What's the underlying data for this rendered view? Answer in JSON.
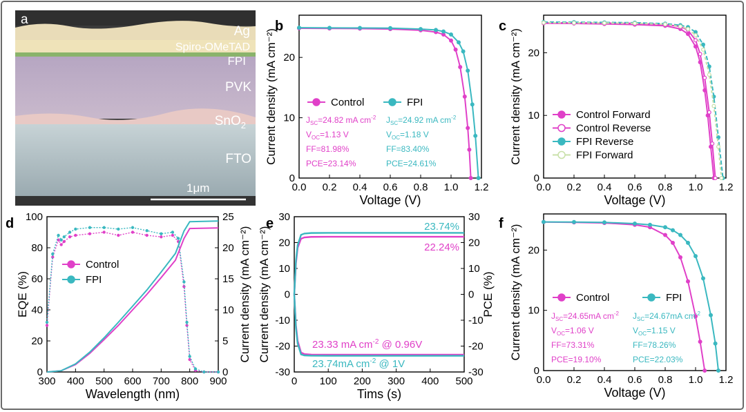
{
  "colors": {
    "control": "#e040c8",
    "fpi": "#3ab8c0",
    "frame": "#555555"
  },
  "panel_a": {
    "label": "a",
    "layers": [
      "Ag",
      "Spiro-OMeTAD",
      "FPI",
      "PVK",
      "SnO",
      "FTO"
    ],
    "sno2_sub": "2",
    "scalebar": "1μm"
  },
  "chart_data": [
    {
      "panel": "b",
      "type": "line",
      "xlabel": "Voltage (V)",
      "ylabel": "Current density (mA cm⁻²)",
      "xlim": [
        0,
        1.2
      ],
      "ylim": [
        0,
        27
      ],
      "xticks": [
        "0.0",
        "0.2",
        "0.4",
        "0.6",
        "0.8",
        "1.0",
        "1.2"
      ],
      "yticks": [
        "0",
        "10",
        "20"
      ],
      "series": [
        {
          "name": "Control",
          "x": [
            0,
            0.2,
            0.4,
            0.6,
            0.8,
            0.9,
            0.95,
            1.0,
            1.03,
            1.06,
            1.09,
            1.11,
            1.12,
            1.13
          ],
          "y": [
            24.82,
            24.8,
            24.77,
            24.7,
            24.5,
            24.2,
            23.8,
            22.8,
            21.3,
            18.4,
            13.5,
            8.3,
            4.7,
            0
          ]
        },
        {
          "name": "FPI",
          "x": [
            0,
            0.2,
            0.4,
            0.6,
            0.8,
            0.9,
            0.95,
            1.0,
            1.05,
            1.08,
            1.11,
            1.14,
            1.16,
            1.18
          ],
          "y": [
            24.92,
            24.9,
            24.88,
            24.85,
            24.7,
            24.55,
            24.3,
            23.8,
            22.5,
            21.0,
            17.8,
            12.2,
            7.0,
            0
          ]
        }
      ],
      "legend": [
        "Control",
        "FPI"
      ],
      "annotations": {
        "control": [
          "J=24.82 mA cm",
          "V=1.13 V",
          "FF=81.98%",
          "PCE=23.14%"
        ],
        "fpi": [
          "J=24.92 mA cm",
          "V=1.18 V",
          "FF=83.40%",
          "PCE=24.61%"
        ]
      }
    },
    {
      "panel": "c",
      "type": "line",
      "xlabel": "Voltage (V)",
      "ylabel": "Current density (mA cm⁻²)",
      "xlim": [
        0,
        1.2
      ],
      "ylim": [
        0,
        26
      ],
      "xticks": [
        "0.0",
        "0.2",
        "0.4",
        "0.6",
        "0.8",
        "1.0",
        "1.2"
      ],
      "yticks": [
        "0",
        "10",
        "20"
      ],
      "series": [
        {
          "name": "Control Forward",
          "x": [
            0,
            0.2,
            0.4,
            0.6,
            0.8,
            0.9,
            0.95,
            1.0,
            1.03,
            1.06,
            1.08,
            1.1,
            1.12
          ],
          "y": [
            24.7,
            24.68,
            24.6,
            24.5,
            24.3,
            23.8,
            23.0,
            21.0,
            18.5,
            14.0,
            10.0,
            5.0,
            0
          ]
        },
        {
          "name": "Control Reverse",
          "x": [
            0,
            0.2,
            0.4,
            0.6,
            0.8,
            0.9,
            0.95,
            1.0,
            1.03,
            1.06,
            1.09,
            1.11,
            1.13
          ],
          "y": [
            24.8,
            24.78,
            24.75,
            24.7,
            24.5,
            24.2,
            23.6,
            22.0,
            19.8,
            16.0,
            10.5,
            5.5,
            0
          ]
        },
        {
          "name": "FPI Reverse",
          "x": [
            0,
            0.2,
            0.4,
            0.6,
            0.8,
            0.9,
            0.95,
            1.0,
            1.05,
            1.09,
            1.12,
            1.15,
            1.18
          ],
          "y": [
            24.9,
            24.88,
            24.85,
            24.8,
            24.65,
            24.4,
            24.1,
            23.3,
            21.3,
            17.8,
            13.0,
            6.5,
            0
          ]
        },
        {
          "name": "FPI Forward",
          "x": [
            0,
            0.2,
            0.4,
            0.6,
            0.8,
            0.9,
            0.95,
            1.0,
            1.05,
            1.09,
            1.12,
            1.15,
            1.17
          ],
          "y": [
            24.8,
            24.78,
            24.75,
            24.7,
            24.55,
            24.2,
            23.8,
            22.8,
            20.5,
            16.5,
            11.5,
            5.0,
            0
          ]
        }
      ],
      "legend": [
        "Control Forward",
        "Control Reverse",
        "FPI Reverse",
        "FPI Forward"
      ]
    },
    {
      "panel": "d",
      "type": "line",
      "xlabel": "Wavelength (nm)",
      "ylabel": "EQE (%)",
      "y2label": "Current density (mA cm⁻²)",
      "xlim": [
        300,
        900
      ],
      "ylim": [
        0,
        100
      ],
      "y2lim": [
        0,
        25
      ],
      "xticks": [
        "300",
        "400",
        "500",
        "600",
        "700",
        "800",
        "900"
      ],
      "yticks": [
        "0",
        "20",
        "40",
        "60",
        "80",
        "100"
      ],
      "y2ticks": [
        "0",
        "5",
        "10",
        "15",
        "20",
        "25"
      ],
      "series": [
        {
          "name": "Control",
          "x": [
            300,
            320,
            340,
            350,
            360,
            380,
            400,
            450,
            500,
            550,
            600,
            650,
            700,
            740,
            760,
            780,
            790,
            800,
            820,
            850,
            900
          ],
          "y": [
            30,
            74,
            85,
            82,
            84,
            87,
            88,
            89,
            90,
            88,
            90,
            88,
            87,
            88,
            84,
            55,
            30,
            8,
            1,
            0,
            0
          ]
        },
        {
          "name": "FPI",
          "x": [
            300,
            320,
            340,
            350,
            360,
            380,
            400,
            450,
            500,
            550,
            600,
            650,
            700,
            740,
            760,
            780,
            790,
            800,
            820,
            850,
            900
          ],
          "y": [
            32,
            76,
            88,
            85,
            87,
            90,
            92,
            93,
            93,
            92,
            93,
            91,
            89,
            90,
            86,
            58,
            32,
            10,
            2,
            0,
            0
          ]
        }
      ],
      "jsc_series": [
        {
          "name": "Control",
          "x": [
            300,
            350,
            400,
            450,
            500,
            550,
            600,
            650,
            700,
            750,
            780,
            800,
            900
          ],
          "y": [
            0,
            0.2,
            1.2,
            3.0,
            5.2,
            7.5,
            10.0,
            12.5,
            15.2,
            18.0,
            21.5,
            23.1,
            23.2
          ]
        },
        {
          "name": "FPI",
          "x": [
            300,
            350,
            400,
            450,
            500,
            550,
            600,
            650,
            700,
            750,
            780,
            800,
            900
          ],
          "y": [
            0,
            0.2,
            1.3,
            3.2,
            5.5,
            8.0,
            10.6,
            13.2,
            16.1,
            19.1,
            22.7,
            24.2,
            24.3
          ]
        }
      ],
      "legend": [
        "Control",
        "FPI"
      ]
    },
    {
      "panel": "e",
      "type": "line",
      "xlabel": "Tims (s)",
      "ylabel": "Current density (mA cm⁻²)",
      "y2label": "PCE (%)",
      "xlim": [
        0,
        500
      ],
      "ylim": [
        -30,
        30
      ],
      "y2lim": [
        -30,
        30
      ],
      "xticks": [
        "0",
        "100",
        "200",
        "300",
        "400",
        "500"
      ],
      "yticks": [
        "-30",
        "-20",
        "-10",
        "0",
        "10",
        "20",
        "30"
      ],
      "y2ticks": [
        "-30",
        "-20",
        "-10",
        "0",
        "10",
        "20",
        "30"
      ],
      "series": [
        {
          "name": "Control PCE",
          "x": [
            0,
            5,
            10,
            20,
            30,
            50,
            100,
            500
          ],
          "y": [
            0,
            12,
            18,
            21.5,
            22,
            22.2,
            22.24,
            22.24
          ]
        },
        {
          "name": "FPI PCE",
          "x": [
            0,
            5,
            10,
            20,
            30,
            50,
            100,
            500
          ],
          "y": [
            0,
            13,
            19,
            23,
            23.5,
            23.7,
            23.74,
            23.74
          ]
        },
        {
          "name": "Control J",
          "x": [
            0,
            5,
            10,
            20,
            30,
            50,
            100,
            500
          ],
          "y": [
            0,
            -12,
            -18,
            -22.5,
            -23.1,
            -23.3,
            -23.33,
            -23.33
          ]
        },
        {
          "name": "FPI J",
          "x": [
            0,
            5,
            10,
            20,
            30,
            50,
            100,
            500
          ],
          "y": [
            0,
            -13,
            -19,
            -23.2,
            -23.6,
            -23.7,
            -23.74,
            -23.74
          ]
        }
      ],
      "annotations": [
        "23.74%",
        "22.24%",
        "23.33 mA cm @ 0.96V",
        "23.74mA cm @ 1V"
      ]
    },
    {
      "panel": "f",
      "type": "line",
      "xlabel": "Voltage (V)",
      "ylabel": "Current density (mA cm⁻²)",
      "xlim": [
        0,
        1.2
      ],
      "ylim": [
        0,
        26
      ],
      "xticks": [
        "0.0",
        "0.2",
        "0.4",
        "0.6",
        "0.8",
        "1.0",
        "1.2"
      ],
      "yticks": [
        "0",
        "10",
        "20"
      ],
      "series": [
        {
          "name": "Control",
          "x": [
            0,
            0.2,
            0.4,
            0.6,
            0.7,
            0.8,
            0.85,
            0.9,
            0.95,
            1.0,
            1.03,
            1.06
          ],
          "y": [
            24.65,
            24.6,
            24.5,
            24.2,
            23.8,
            22.5,
            21.2,
            18.8,
            14.8,
            9.0,
            4.8,
            0
          ]
        },
        {
          "name": "FPI",
          "x": [
            0,
            0.2,
            0.4,
            0.6,
            0.7,
            0.8,
            0.85,
            0.9,
            0.95,
            1.0,
            1.05,
            1.1,
            1.13,
            1.15
          ],
          "y": [
            24.67,
            24.65,
            24.6,
            24.4,
            24.2,
            23.8,
            23.3,
            22.5,
            21.2,
            19.0,
            15.3,
            9.2,
            4.5,
            0
          ]
        }
      ],
      "legend": [
        "Control",
        "FPI"
      ],
      "annotations": {
        "control": [
          "J=24.65mA cm",
          "V=1.06 V",
          "FF=73.31%",
          "PCE=19.10%"
        ],
        "fpi": [
          "J=24.67mA cm",
          "V=1.15 V",
          "FF=78.26%",
          "PCE=22.03%"
        ]
      }
    }
  ],
  "labels": {
    "b": "b",
    "c": "c",
    "d": "d",
    "e": "e",
    "f": "f",
    "sc": "SC",
    "oc": "OC",
    "sup": "-2"
  }
}
